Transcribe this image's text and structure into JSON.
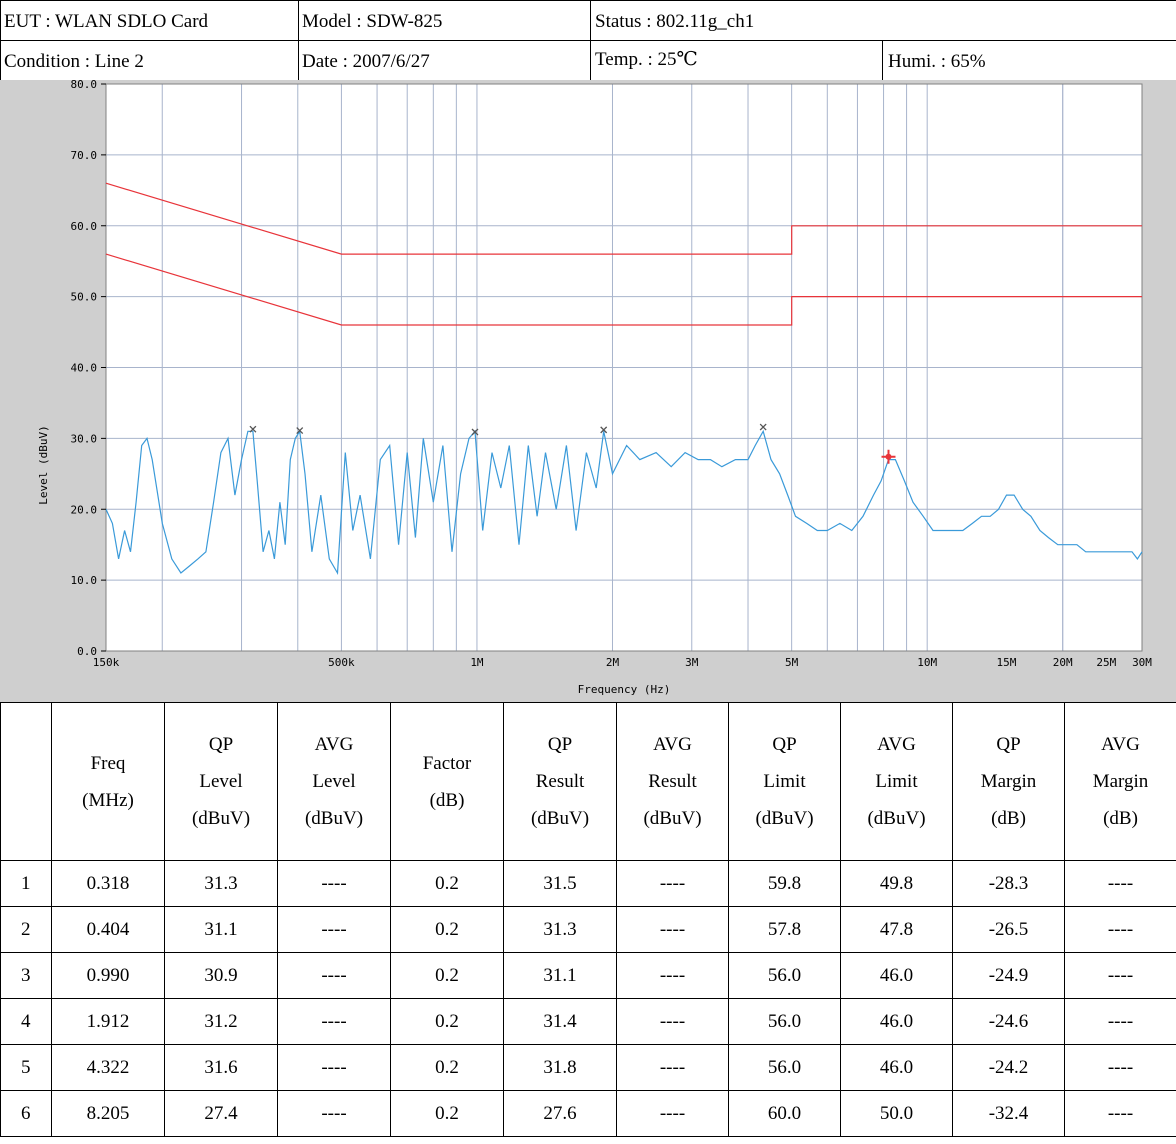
{
  "header": {
    "eut": "EUT : WLAN SDLO Card",
    "model": "Model : SDW-825",
    "status": "Status : 802.11g_ch1",
    "condition": "Condition : Line 2",
    "date": "Date : 2007/6/27",
    "temp": "Temp. : 25℃",
    "humi": "Humi. : 65%"
  },
  "colors": {
    "trace": "#3a9ad9",
    "limit": "#e8343a",
    "marker": "#555555",
    "highlight_marker": "#e8343a",
    "plot_bg": "#ffffff",
    "frame_bg": "#cfcfcf",
    "grid": "#a8b4cc"
  },
  "chart_data": {
    "type": "line",
    "xlabel": "Frequency (Hz)",
    "ylabel": "Level (dBuV)",
    "xscale": "log",
    "xlim": [
      0.15,
      30
    ],
    "ylim": [
      0,
      80
    ],
    "yticks": [
      0,
      10,
      20,
      30,
      40,
      50,
      60,
      70,
      80
    ],
    "ytick_labels": [
      "0.0",
      "10.0",
      "20.0",
      "30.0",
      "40.0",
      "50.0",
      "60.0",
      "70.0",
      "80.0"
    ],
    "xticks": [
      0.15,
      0.5,
      1,
      2,
      3,
      5,
      10,
      15,
      20,
      25,
      30
    ],
    "xtick_labels": [
      "150k",
      "500k",
      "1M",
      "2M",
      "3M",
      "5M",
      "10M",
      "15M",
      "20M",
      "25M",
      "30M"
    ],
    "grid": true,
    "series": [
      {
        "kind": "limit",
        "x": [
          0.15,
          0.5,
          0.5,
          5,
          5,
          30
        ],
        "y": [
          66,
          56,
          56,
          56,
          60,
          60
        ]
      },
      {
        "kind": "limit",
        "x": [
          0.15,
          0.5,
          0.5,
          5,
          5,
          30
        ],
        "y": [
          56,
          46,
          46,
          46,
          50,
          50
        ]
      },
      {
        "kind": "trace",
        "x": [
          0.15,
          0.155,
          0.16,
          0.165,
          0.17,
          0.175,
          0.18,
          0.185,
          0.19,
          0.2,
          0.21,
          0.22,
          0.23,
          0.24,
          0.25,
          0.26,
          0.27,
          0.28,
          0.29,
          0.3,
          0.31,
          0.318,
          0.325,
          0.335,
          0.345,
          0.355,
          0.365,
          0.375,
          0.385,
          0.395,
          0.404,
          0.415,
          0.43,
          0.45,
          0.47,
          0.49,
          0.51,
          0.53,
          0.55,
          0.58,
          0.61,
          0.64,
          0.67,
          0.7,
          0.73,
          0.76,
          0.8,
          0.84,
          0.88,
          0.92,
          0.96,
          0.99,
          1.03,
          1.08,
          1.13,
          1.18,
          1.24,
          1.3,
          1.36,
          1.42,
          1.5,
          1.58,
          1.66,
          1.75,
          1.84,
          1.912,
          2.0,
          2.15,
          2.3,
          2.5,
          2.7,
          2.9,
          3.1,
          3.3,
          3.5,
          3.75,
          4.0,
          4.15,
          4.322,
          4.5,
          4.7,
          4.9,
          5.1,
          5.4,
          5.7,
          6.0,
          6.4,
          6.8,
          7.2,
          7.6,
          7.9,
          8.205,
          8.5,
          8.9,
          9.3,
          9.8,
          10.3,
          10.8,
          11.4,
          12,
          12.6,
          13.2,
          13.8,
          14.4,
          15,
          15.6,
          16.3,
          17,
          17.8,
          18.6,
          19.5,
          20.5,
          21.5,
          22.5,
          23.5,
          24.5,
          25.5,
          26.5,
          27.5,
          28.5,
          29.3,
          30
        ],
        "y": [
          20,
          18,
          13,
          17,
          14,
          21,
          29,
          30,
          27,
          18,
          13,
          11,
          12,
          13,
          14,
          21,
          28,
          30,
          22,
          27,
          31,
          31,
          24,
          14,
          17,
          13,
          21,
          15,
          27,
          30,
          31,
          25,
          14,
          22,
          13,
          11,
          28,
          17,
          22,
          13,
          27,
          29,
          15,
          28,
          16,
          30,
          21,
          29,
          14,
          25,
          30,
          31,
          17,
          28,
          23,
          29,
          15,
          29,
          19,
          28,
          20,
          29,
          17,
          28,
          23,
          31,
          25,
          29,
          27,
          28,
          26,
          28,
          27,
          27,
          26,
          27,
          27,
          29,
          31,
          27,
          25,
          22,
          19,
          18,
          17,
          17,
          18,
          17,
          19,
          22,
          24,
          27,
          27,
          24,
          21,
          19,
          17,
          17,
          17,
          17,
          18,
          19,
          19,
          20,
          22,
          22,
          20,
          19,
          17,
          16,
          15,
          15,
          15,
          14,
          14,
          14,
          14,
          14,
          14,
          14,
          13,
          14
        ]
      }
    ],
    "markers": [
      {
        "freq": 0.318,
        "level": 31.3,
        "highlight": false
      },
      {
        "freq": 0.404,
        "level": 31.1,
        "highlight": false
      },
      {
        "freq": 0.99,
        "level": 30.9,
        "highlight": false
      },
      {
        "freq": 1.912,
        "level": 31.2,
        "highlight": false
      },
      {
        "freq": 4.322,
        "level": 31.6,
        "highlight": false
      },
      {
        "freq": 8.205,
        "level": 27.4,
        "highlight": true
      }
    ]
  },
  "table": {
    "headers": [
      [
        ""
      ],
      [
        "Freq",
        "(MHz)"
      ],
      [
        "QP",
        "Level",
        "(dBuV)"
      ],
      [
        "AVG",
        "Level",
        "(dBuV)"
      ],
      [
        "Factor",
        "(dB)"
      ],
      [
        "QP",
        "Result",
        "(dBuV)"
      ],
      [
        "AVG",
        "Result",
        "(dBuV)"
      ],
      [
        "QP",
        "Limit",
        "(dBuV)"
      ],
      [
        "AVG",
        "Limit",
        "(dBuV)"
      ],
      [
        "QP",
        "Margin",
        "(dB)"
      ],
      [
        "AVG",
        "Margin",
        "(dB)"
      ]
    ],
    "rows": [
      [
        "1",
        "0.318",
        "31.3",
        "----",
        "0.2",
        "31.5",
        "----",
        "59.8",
        "49.8",
        "-28.3",
        "----"
      ],
      [
        "2",
        "0.404",
        "31.1",
        "----",
        "0.2",
        "31.3",
        "----",
        "57.8",
        "47.8",
        "-26.5",
        "----"
      ],
      [
        "3",
        "0.990",
        "30.9",
        "----",
        "0.2",
        "31.1",
        "----",
        "56.0",
        "46.0",
        "-24.9",
        "----"
      ],
      [
        "4",
        "1.912",
        "31.2",
        "----",
        "0.2",
        "31.4",
        "----",
        "56.0",
        "46.0",
        "-24.6",
        "----"
      ],
      [
        "5",
        "4.322",
        "31.6",
        "----",
        "0.2",
        "31.8",
        "----",
        "56.0",
        "46.0",
        "-24.2",
        "----"
      ],
      [
        "6",
        "8.205",
        "27.4",
        "----",
        "0.2",
        "27.6",
        "----",
        "60.0",
        "50.0",
        "-32.4",
        "----"
      ]
    ]
  }
}
